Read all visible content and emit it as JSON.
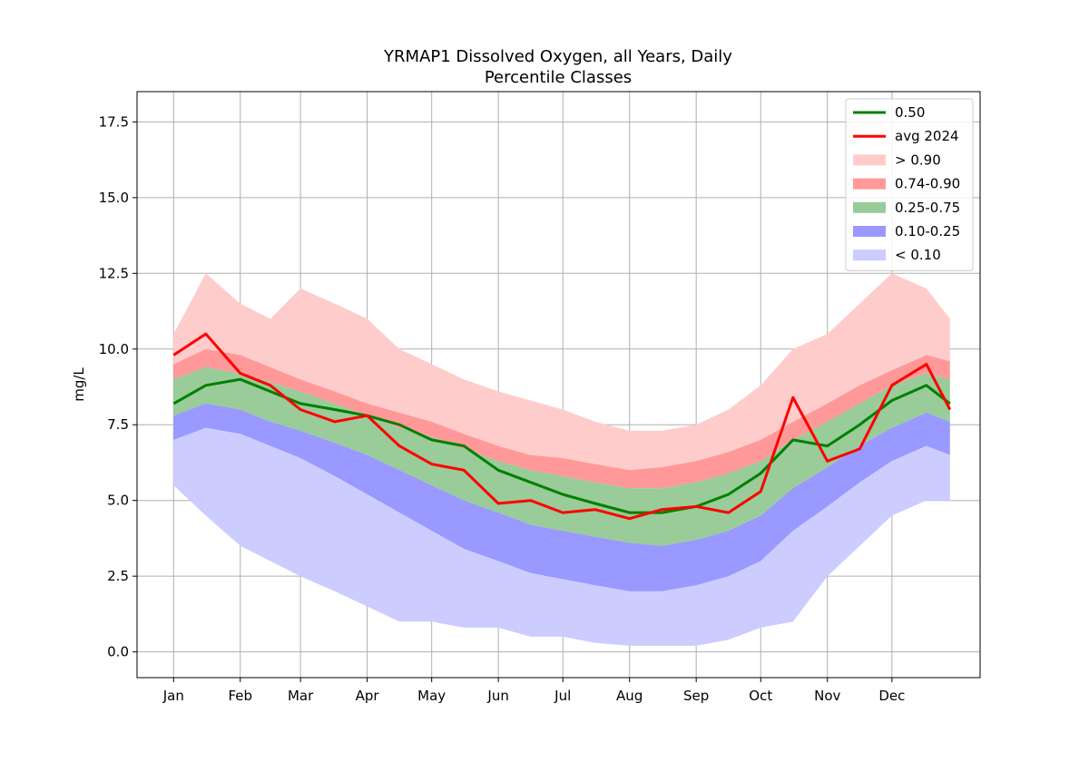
{
  "chart_data": {
    "type": "area",
    "title_line1": "YRMAP1 Dissolved Oxygen, all Years, Daily",
    "title_line2": "Percentile Classes",
    "xlabel": "",
    "ylabel": "mg/L",
    "ylim": [
      -0.85,
      18.5
    ],
    "xlim": [
      -17,
      375
    ],
    "grid": true,
    "legend_position": "top-right",
    "x_ticks": [
      {
        "label": "Jan",
        "day": 0
      },
      {
        "label": "Feb",
        "day": 31
      },
      {
        "label": "Mar",
        "day": 59
      },
      {
        "label": "Apr",
        "day": 90
      },
      {
        "label": "May",
        "day": 120
      },
      {
        "label": "Jun",
        "day": 151
      },
      {
        "label": "Jul",
        "day": 181
      },
      {
        "label": "Aug",
        "day": 212
      },
      {
        "label": "Sep",
        "day": 243
      },
      {
        "label": "Oct",
        "day": 273
      },
      {
        "label": "Nov",
        "day": 304
      },
      {
        "label": "Dec",
        "day": 334
      }
    ],
    "y_ticks": [
      "0.0",
      "2.5",
      "5.0",
      "7.5",
      "10.0",
      "12.5",
      "15.0",
      "17.5"
    ],
    "y_tick_values": [
      0,
      2.5,
      5,
      7.5,
      10,
      12.5,
      15,
      17.5
    ],
    "legend": [
      {
        "label": "0.50",
        "kind": "line",
        "color": "#008000"
      },
      {
        "label": "avg 2024",
        "kind": "line",
        "color": "#ff0000"
      },
      {
        "label": "> 0.90",
        "kind": "patch",
        "color": "#ffcccc"
      },
      {
        "label": "0.74-0.90",
        "kind": "patch",
        "color": "#ff9999"
      },
      {
        "label": "0.25-0.75",
        "kind": "patch",
        "color": "#99cc99"
      },
      {
        "label": "0.10-0.25",
        "kind": "patch",
        "color": "#9999ff"
      },
      {
        "label": "< 0.10",
        "kind": "patch",
        "color": "#ccccff"
      }
    ],
    "x": [
      0,
      15,
      31,
      45,
      59,
      75,
      90,
      105,
      120,
      135,
      151,
      166,
      181,
      196,
      212,
      227,
      243,
      258,
      273,
      288,
      304,
      319,
      334,
      350,
      361
    ],
    "series": [
      {
        "name": "> 0.90",
        "band": "max",
        "values": [
          10.5,
          12.5,
          11.5,
          11.0,
          12.0,
          11.5,
          11.0,
          10.0,
          9.5,
          9.0,
          8.6,
          8.3,
          8.0,
          7.6,
          7.3,
          7.3,
          7.5,
          8.0,
          8.8,
          10.0,
          10.5,
          11.5,
          12.5,
          12.0,
          11.0
        ]
      },
      {
        "name": "0.74-0.90",
        "band": "p90",
        "values": [
          9.5,
          10.0,
          9.8,
          9.4,
          9.0,
          8.6,
          8.2,
          7.9,
          7.6,
          7.2,
          6.8,
          6.5,
          6.4,
          6.2,
          6.0,
          6.1,
          6.3,
          6.6,
          7.0,
          7.6,
          8.2,
          8.8,
          9.3,
          9.8,
          9.6
        ]
      },
      {
        "name": "0.25-0.75",
        "band": "p75",
        "values": [
          9.0,
          9.4,
          9.2,
          8.9,
          8.6,
          8.2,
          7.8,
          7.4,
          7.1,
          6.7,
          6.3,
          6.0,
          5.8,
          5.6,
          5.4,
          5.4,
          5.6,
          5.9,
          6.3,
          7.0,
          7.6,
          8.2,
          8.8,
          9.2,
          9.0
        ]
      },
      {
        "name": "0.10-0.25",
        "band": "p25",
        "values": [
          7.8,
          8.2,
          8.0,
          7.6,
          7.3,
          6.9,
          6.5,
          6.0,
          5.5,
          5.0,
          4.6,
          4.2,
          4.0,
          3.8,
          3.6,
          3.5,
          3.7,
          4.0,
          4.5,
          5.4,
          6.1,
          6.8,
          7.4,
          7.9,
          7.6
        ]
      },
      {
        "name": "< 0.10",
        "band": "p10",
        "values": [
          7.0,
          7.4,
          7.2,
          6.8,
          6.4,
          5.8,
          5.2,
          4.6,
          4.0,
          3.4,
          3.0,
          2.6,
          2.4,
          2.2,
          2.0,
          2.0,
          2.2,
          2.5,
          3.0,
          4.0,
          4.8,
          5.6,
          6.3,
          6.8,
          6.5
        ]
      },
      {
        "name": "min",
        "band": "min",
        "values": [
          5.5,
          4.5,
          3.5,
          3.0,
          2.5,
          2.0,
          1.5,
          1.0,
          1.0,
          0.8,
          0.8,
          0.5,
          0.5,
          0.3,
          0.2,
          0.2,
          0.2,
          0.4,
          0.8,
          1.0,
          2.5,
          3.5,
          4.5,
          5.0,
          5.0
        ]
      },
      {
        "name": "0.50",
        "band": "median",
        "values": [
          8.2,
          8.8,
          9.0,
          8.6,
          8.2,
          8.0,
          7.8,
          7.5,
          7.0,
          6.8,
          6.0,
          5.6,
          5.2,
          4.9,
          4.6,
          4.6,
          4.8,
          5.2,
          5.9,
          7.0,
          6.8,
          7.5,
          8.3,
          8.8,
          8.2
        ]
      },
      {
        "name": "avg 2024",
        "band": "avg",
        "values": [
          9.8,
          10.5,
          9.2,
          8.8,
          8.0,
          7.6,
          7.8,
          6.8,
          6.2,
          6.0,
          4.9,
          5.0,
          4.6,
          4.7,
          4.4,
          4.7,
          4.8,
          4.6,
          5.3,
          8.4,
          6.3,
          6.7,
          8.8,
          9.5,
          8.0
        ]
      }
    ]
  }
}
